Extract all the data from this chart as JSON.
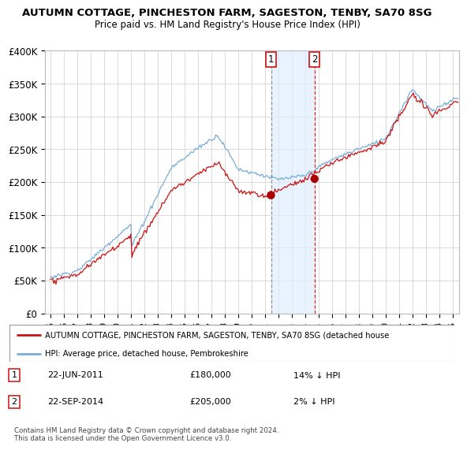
{
  "title": "AUTUMN COTTAGE, PINCHESTON FARM, SAGESTON, TENBY, SA70 8SG",
  "subtitle": "Price paid vs. HM Land Registry's House Price Index (HPI)",
  "hpi_color": "#7aadd4",
  "price_color": "#cc1111",
  "dot_color": "#aa0000",
  "highlight_color": "#ddeeff",
  "vline1_color": "#888888",
  "vline2_color": "#cc1111",
  "t1_year": 2011.458,
  "t2_year": 2014.708,
  "t1_price": 180000,
  "t2_price": 205000,
  "ylim": [
    0,
    400000
  ],
  "yticks": [
    0,
    50000,
    100000,
    150000,
    200000,
    250000,
    300000,
    350000,
    400000
  ],
  "xlim_min": 1994.6,
  "xlim_max": 2025.5,
  "legend_line1": "AUTUMN COTTAGE, PINCHESTON FARM, SAGESTON, TENBY, SA70 8SG (detached house",
  "legend_line2": "HPI: Average price, detached house, Pembrokeshire",
  "table_row1": [
    "1",
    "22-JUN-2011",
    "£180,000",
    "14% ↓ HPI"
  ],
  "table_row2": [
    "2",
    "22-SEP-2014",
    "£205,000",
    "2% ↓ HPI"
  ],
  "footnote": "Contains HM Land Registry data © Crown copyright and database right 2024.\nThis data is licensed under the Open Government Licence v3.0.",
  "grid_color": "#cccccc",
  "spine_color": "#bbbbbb"
}
